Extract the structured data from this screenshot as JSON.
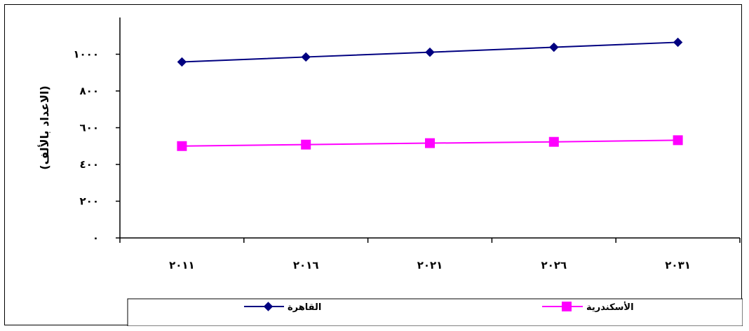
{
  "chart_data": {
    "type": "line",
    "x": [
      "٢٠١١",
      "٢٠١٦",
      "٢٠٢١",
      "٢٠٢٦",
      "٢٠٣١"
    ],
    "series": [
      {
        "name": "القاهرة",
        "values": [
          958,
          985,
          1011,
          1038,
          1065
        ],
        "color": "#000080",
        "marker": "diamond"
      },
      {
        "name": "الأسكندرية",
        "values": [
          500,
          508,
          516,
          523,
          532
        ],
        "color": "#FF00FF",
        "marker": "square"
      }
    ],
    "ylabel": "(الاعداد بالألف)",
    "ylim": [
      0,
      1200
    ],
    "yticks": [
      0,
      200,
      400,
      600,
      800,
      1000
    ],
    "ytick_labels": [
      "٠",
      "٢٠٠",
      "٤٠٠",
      "٦٠٠",
      "٨٠٠",
      "١٠٠٠"
    ],
    "grid": false,
    "legend": "bottom"
  }
}
